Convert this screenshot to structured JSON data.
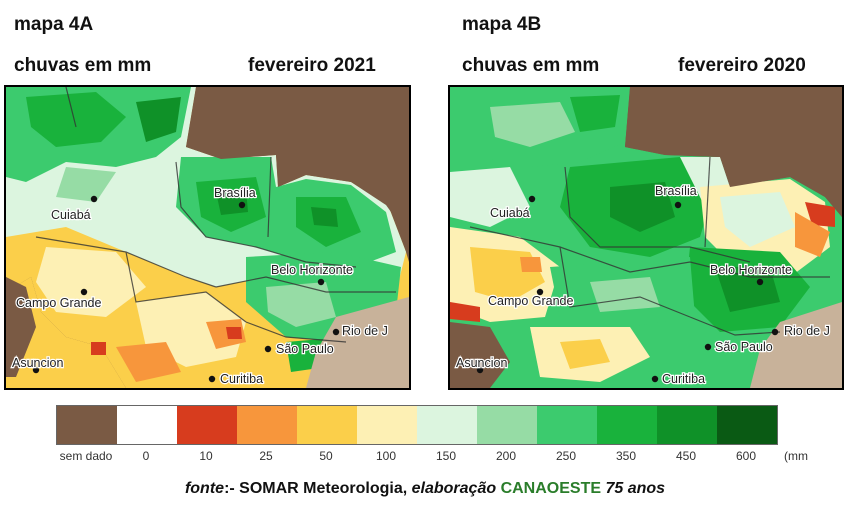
{
  "map_a": {
    "title": "mapa 4A",
    "subtitle": "chuvas em mm",
    "period": "fevereiro 2021"
  },
  "map_b": {
    "title": "mapa 4B",
    "subtitle": "chuvas em mm",
    "period": "fevereiro 2020"
  },
  "cities": {
    "cuiaba": "Cuiabá",
    "brasilia": "Brasília",
    "belo_horizonte": "Belo Horizonte",
    "campo_grande": "Campo Grande",
    "rio": "Rio de J",
    "sao_paulo": "São Paulo",
    "asuncion": "Asuncion",
    "curitiba": "Curitiba"
  },
  "legend": {
    "unit": "(mm",
    "items": [
      {
        "label": "sem dado",
        "color": "#7a5a44"
      },
      {
        "label": "0",
        "color": "#ffffff"
      },
      {
        "label": "10",
        "color": "#d73c1e"
      },
      {
        "label": "25",
        "color": "#f7963c"
      },
      {
        "label": "50",
        "color": "#fbcf4a"
      },
      {
        "label": "100",
        "color": "#fdf0b4"
      },
      {
        "label": "150",
        "color": "#dcf5df"
      },
      {
        "label": "200",
        "color": "#96dca5"
      },
      {
        "label": "250",
        "color": "#3ccb6e"
      },
      {
        "label": "350",
        "color": "#19b23c"
      },
      {
        "label": "450",
        "color": "#0f9128"
      },
      {
        "label": "600",
        "color": "#0a5a14"
      }
    ]
  },
  "source": {
    "fonte": "fonte",
    "text": ":- SOMAR Meteorologia, ",
    "elaboracao": "elaboração ",
    "brand": "CANAOESTE",
    "suffix": " 75 anos"
  }
}
